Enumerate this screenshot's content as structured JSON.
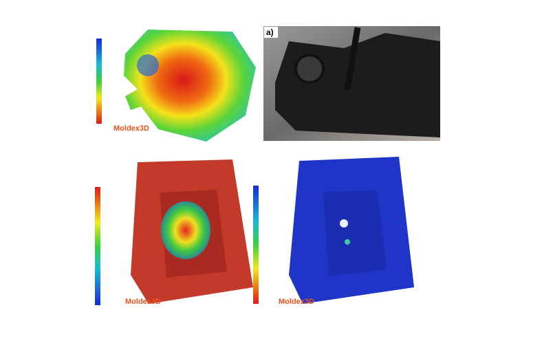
{
  "panels": [
    {
      "logo": "Moldex3D"
    },
    {
      "label": "a)"
    },
    {
      "logo": "Moldex3D"
    },
    {
      "logo": "Moldex3D"
    }
  ]
}
